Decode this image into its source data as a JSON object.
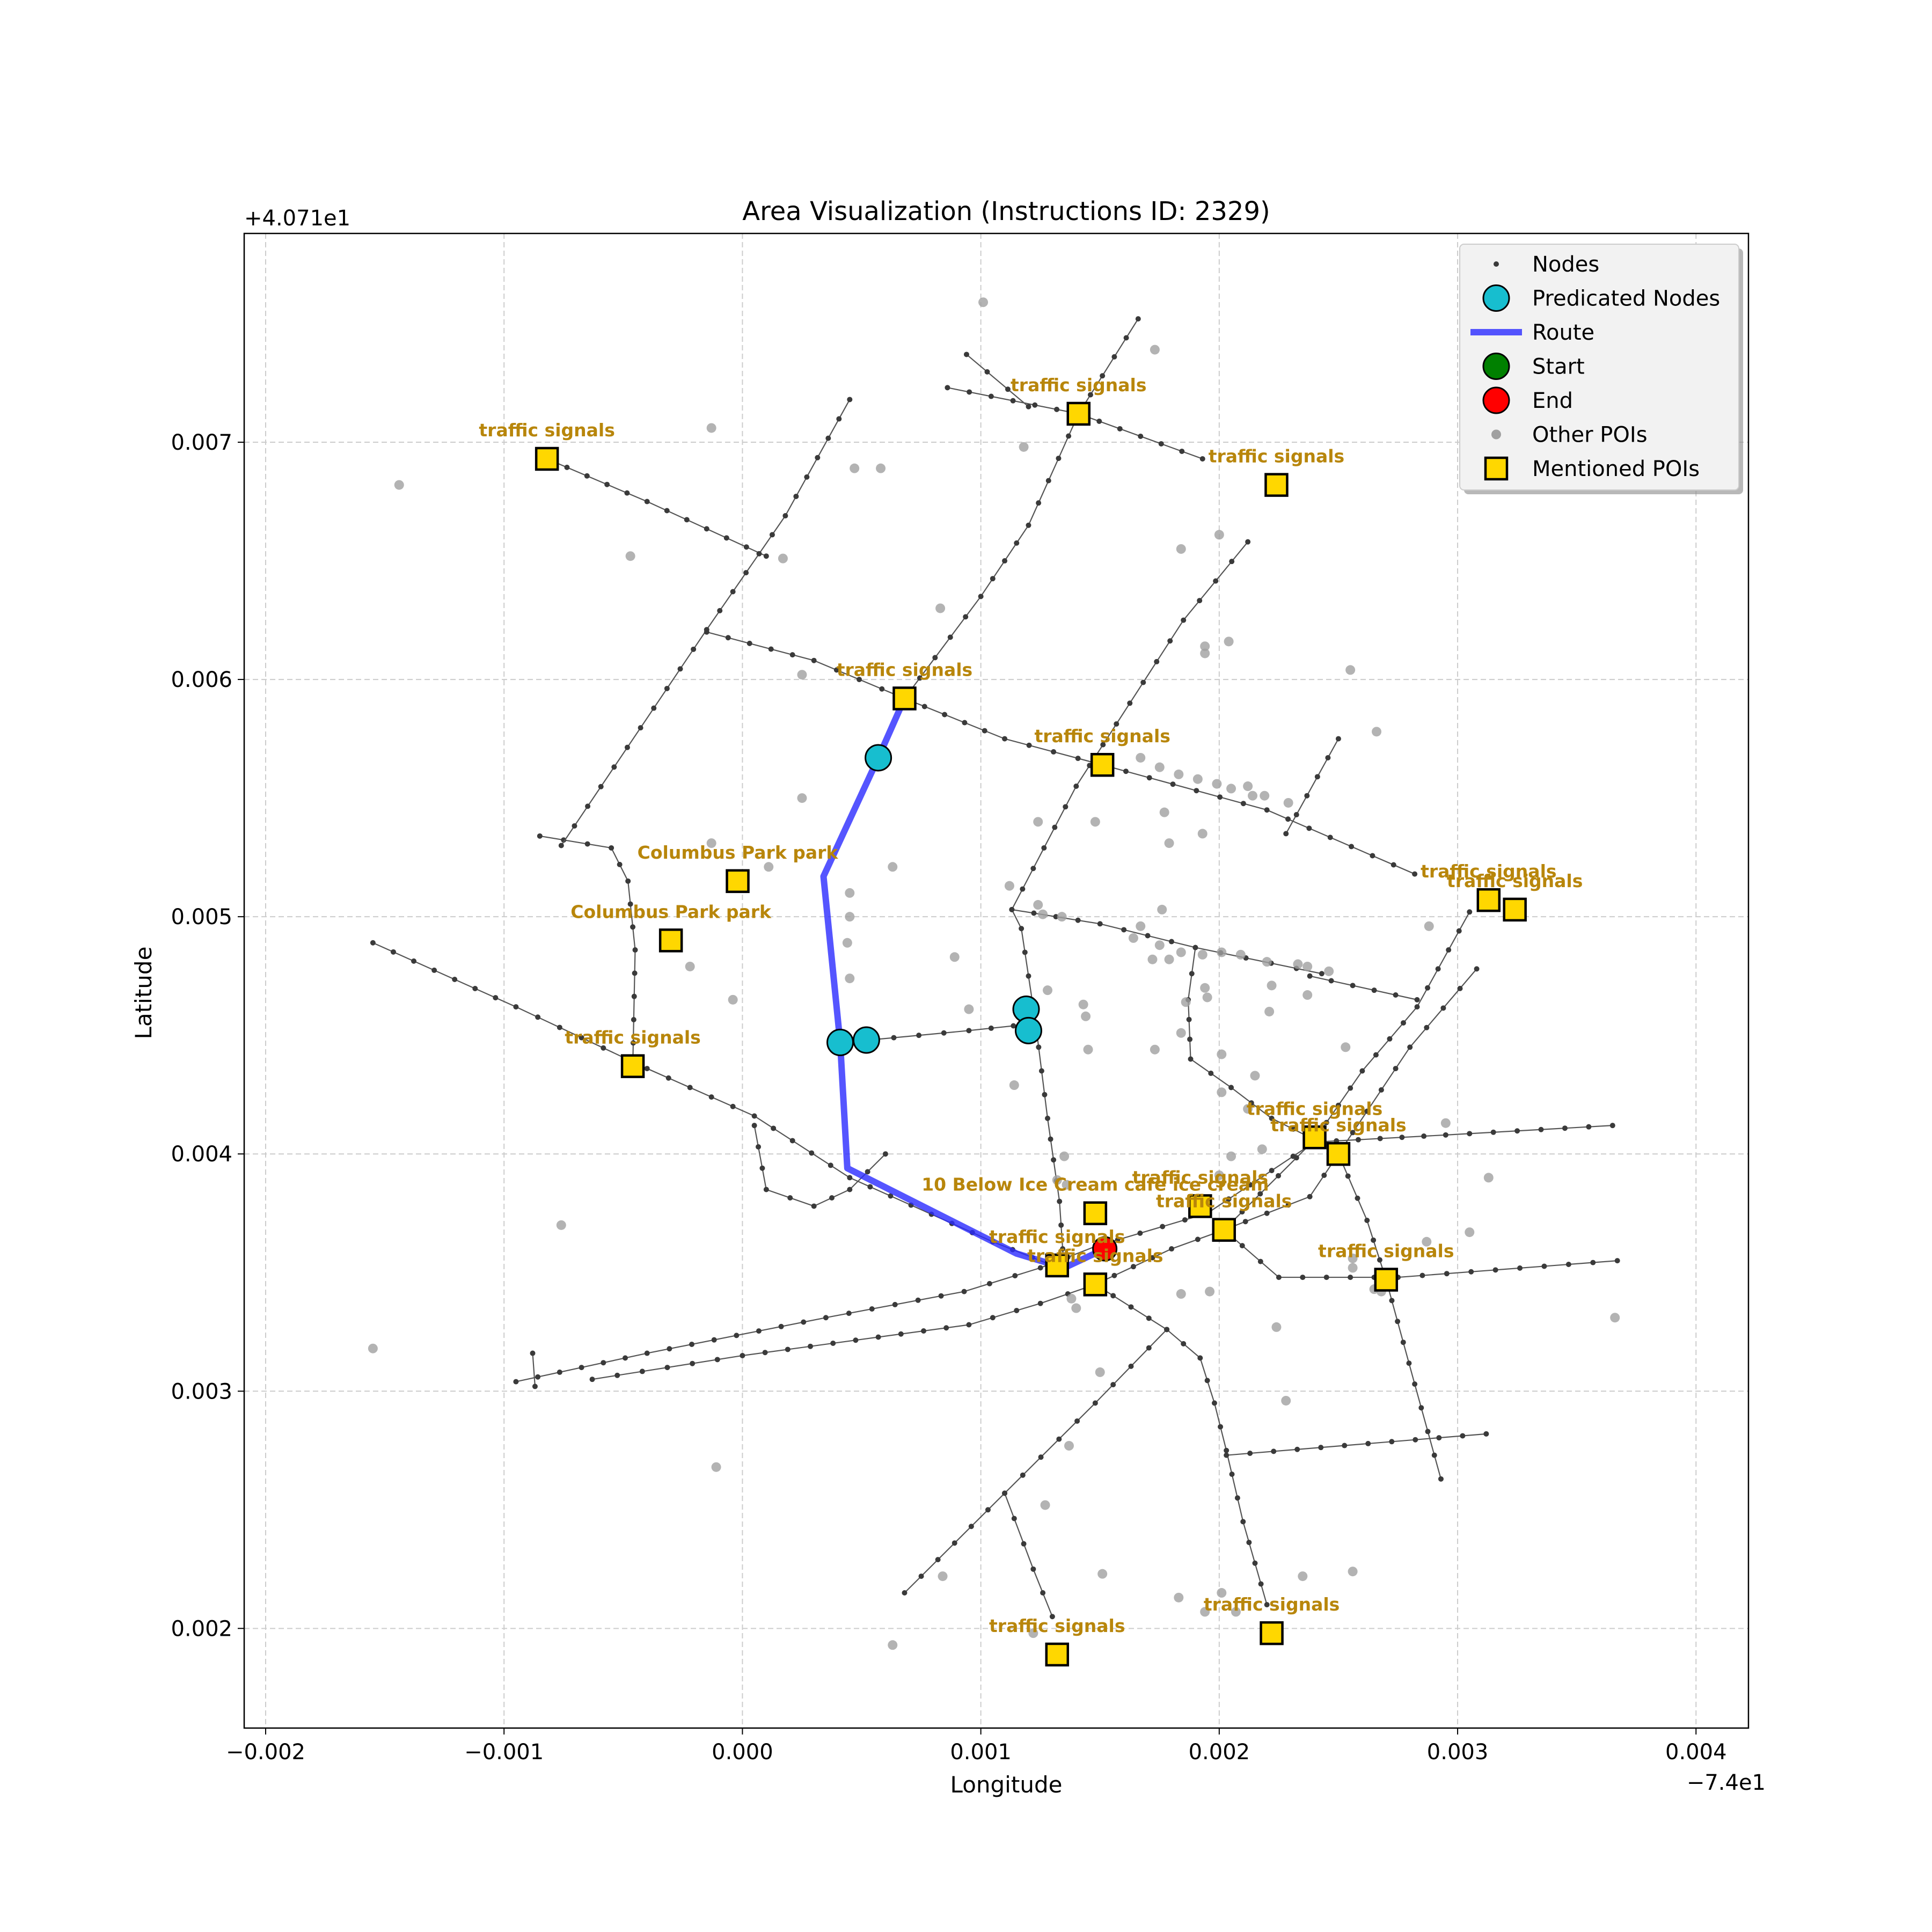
{
  "chart_data": {
    "type": "scatter",
    "title": "Area Visualization (Instructions ID: 2329)",
    "xlabel": "Longitude",
    "ylabel": "Latitude",
    "x_offset_label": "−7.4e1",
    "y_offset_label": "+4.071e1",
    "xlim": [
      -0.00209,
      0.00422
    ],
    "ylim": [
      0.00158,
      0.00788
    ],
    "x_ticks": [
      -0.002,
      -0.001,
      0.0,
      0.001,
      0.002,
      0.003,
      0.004
    ],
    "x_tick_labels": [
      "−0.002",
      "−0.001",
      "0.000",
      "0.001",
      "0.002",
      "0.003",
      "0.004"
    ],
    "y_ticks": [
      0.002,
      0.003,
      0.004,
      0.005,
      0.006,
      0.007
    ],
    "y_tick_labels": [
      "0.002",
      "0.003",
      "0.004",
      "0.005",
      "0.006",
      "0.007"
    ],
    "grid": true,
    "legend_position": "upper right",
    "legend": [
      {
        "label": "Nodes",
        "kind": "node"
      },
      {
        "label": "Predicated Nodes",
        "kind": "predicted"
      },
      {
        "label": "Route",
        "kind": "route"
      },
      {
        "label": "Start",
        "kind": "start"
      },
      {
        "label": "End",
        "kind": "end"
      },
      {
        "label": "Other POIs",
        "kind": "other"
      },
      {
        "label": "Mentioned POIs",
        "kind": "mentioned"
      }
    ],
    "colors": {
      "node": "#3a3a3a",
      "street": "#555555",
      "predicted": "#17becf",
      "route": "#2b2bff",
      "start": "#008000",
      "end": "#ff0000",
      "other_poi": "#a0a0a0",
      "mentioned_fill": "#ffd700",
      "label": "#b8860b"
    },
    "streets": [
      [
        [
          -0.00155,
          0.00489
        ],
        [
          -0.00095,
          0.00462
        ],
        [
          -0.0004,
          0.00436
        ],
        [
          5e-05,
          0.00416
        ],
        [
          0.00045,
          0.0039
        ],
        [
          0.00105,
          0.00363
        ],
        [
          0.0013,
          0.00353
        ]
      ],
      [
        [
          -0.00082,
          0.00693
        ],
        [
          -0.0004,
          0.00675
        ],
        [
          0.0001,
          0.00652
        ]
      ],
      [
        [
          -0.00085,
          0.00534
        ],
        [
          -0.00055,
          0.00529
        ],
        [
          -0.00048,
          0.00515
        ],
        [
          -0.00045,
          0.00486
        ],
        [
          -0.00046,
          0.00437
        ]
      ],
      [
        [
          -0.00076,
          0.0053
        ],
        [
          -0.00015,
          0.00621
        ],
        [
          0.00018,
          0.00669
        ],
        [
          0.00045,
          0.00718
        ]
      ],
      [
        [
          -0.00015,
          0.0062
        ],
        [
          0.0003,
          0.00608
        ],
        [
          0.00068,
          0.00592
        ],
        [
          0.0011,
          0.00575
        ],
        [
          0.00151,
          0.00564
        ],
        [
          0.0022,
          0.00545
        ],
        [
          0.00282,
          0.00518
        ]
      ],
      [
        [
          0.00068,
          0.00592
        ],
        [
          0.001,
          0.00635
        ],
        [
          0.0012,
          0.00665
        ],
        [
          0.00141,
          0.00712
        ],
        [
          0.00166,
          0.00752
        ]
      ],
      [
        [
          0.00086,
          0.00723
        ],
        [
          0.00141,
          0.00712
        ],
        [
          0.00193,
          0.00693
        ]
      ],
      [
        [
          0.00094,
          0.00737
        ],
        [
          0.0012,
          0.00715
        ]
      ],
      [
        [
          5e-05,
          0.00412
        ],
        [
          0.0001,
          0.00385
        ],
        [
          0.0003,
          0.00378
        ],
        [
          0.00045,
          0.00385
        ],
        [
          0.0006,
          0.004
        ]
      ],
      [
        [
          -0.00095,
          0.00304
        ],
        [
          -0.0004,
          0.00316
        ],
        [
          0.00035,
          0.00331
        ],
        [
          0.00093,
          0.00342
        ],
        [
          0.00125,
          0.00352
        ],
        [
          0.00148,
          0.00361
        ],
        [
          0.00195,
          0.00375
        ],
        [
          0.0024,
          0.00405
        ],
        [
          0.00295,
          0.00408
        ],
        [
          0.00365,
          0.00412
        ]
      ],
      [
        [
          -0.00063,
          0.00305
        ],
        [
          0.0,
          0.00315
        ],
        [
          0.00095,
          0.00328
        ],
        [
          0.00125,
          0.00337
        ],
        [
          0.00148,
          0.00345
        ],
        [
          0.0018,
          0.0036
        ],
        [
          0.00202,
          0.00368
        ],
        [
          0.00238,
          0.00382
        ],
        [
          0.0025,
          0.004
        ]
      ],
      [
        [
          -0.00088,
          0.00316
        ],
        [
          -0.00087,
          0.00302
        ]
      ],
      [
        [
          0.00202,
          0.00368
        ],
        [
          0.00225,
          0.00348
        ],
        [
          0.00275,
          0.00348
        ],
        [
          0.00367,
          0.00355
        ]
      ],
      [
        [
          0.0025,
          0.004
        ],
        [
          0.00262,
          0.00372
        ],
        [
          0.0027,
          0.00347
        ],
        [
          0.00282,
          0.00303
        ],
        [
          0.00293,
          0.00263
        ]
      ],
      [
        [
          0.00202,
          0.00368
        ],
        [
          0.0024,
          0.00406
        ],
        [
          0.0026,
          0.00435
        ],
        [
          0.00283,
          0.00462
        ],
        [
          0.00305,
          0.00502
        ]
      ],
      [
        [
          0.0025,
          0.004
        ],
        [
          0.0028,
          0.00445
        ],
        [
          0.00308,
          0.00478
        ]
      ],
      [
        [
          0.00148,
          0.00345
        ],
        [
          0.00178,
          0.00326
        ],
        [
          0.00192,
          0.00314
        ],
        [
          0.00198,
          0.00295
        ],
        [
          0.00203,
          0.00275
        ],
        [
          0.0021,
          0.00245
        ],
        [
          0.0022,
          0.0021
        ]
      ],
      [
        [
          0.00068,
          0.00215
        ],
        [
          0.0011,
          0.00257
        ],
        [
          0.00148,
          0.00295
        ],
        [
          0.00178,
          0.00326
        ]
      ],
      [
        [
          0.0011,
          0.00257
        ],
        [
          0.00122,
          0.00225
        ],
        [
          0.0013,
          0.00205
        ]
      ],
      [
        [
          0.00203,
          0.00273
        ],
        [
          0.00312,
          0.00282
        ]
      ],
      [
        [
          0.00053,
          0.00448
        ],
        [
          0.00095,
          0.00452
        ],
        [
          0.00123,
          0.00455
        ],
        [
          0.00128,
          0.00415
        ],
        [
          0.00133,
          0.0038
        ],
        [
          0.00135,
          0.0035
        ]
      ],
      [
        [
          0.00123,
          0.00455
        ],
        [
          0.00117,
          0.00495
        ],
        [
          0.00113,
          0.00503
        ],
        [
          0.0014,
          0.00555
        ],
        [
          0.00185,
          0.00625
        ],
        [
          0.00212,
          0.00658
        ]
      ],
      [
        [
          0.00113,
          0.00503
        ],
        [
          0.0015,
          0.00497
        ],
        [
          0.0019,
          0.00487
        ],
        [
          0.00243,
          0.00476
        ]
      ],
      [
        [
          0.0019,
          0.00487
        ],
        [
          0.00187,
          0.00465
        ],
        [
          0.00188,
          0.0044
        ],
        [
          0.00205,
          0.00428
        ],
        [
          0.00222,
          0.00415
        ],
        [
          0.0024,
          0.00406
        ]
      ],
      [
        [
          0.00238,
          0.00475
        ],
        [
          0.00283,
          0.00465
        ]
      ],
      [
        [
          0.00228,
          0.00535
        ],
        [
          0.0025,
          0.00575
        ]
      ]
    ],
    "route": [
      [
        0.00068,
        0.00592
      ],
      [
        0.00057,
        0.00567
      ],
      [
        0.00034,
        0.00517
      ],
      [
        0.00041,
        0.00447
      ],
      [
        0.00044,
        0.00394
      ],
      [
        0.00115,
        0.00358
      ],
      [
        0.00135,
        0.00352
      ],
      [
        0.00152,
        0.0036
      ]
    ],
    "predicted_nodes": [
      [
        0.00057,
        0.00567
      ],
      [
        0.00041,
        0.00447
      ],
      [
        0.00052,
        0.00448
      ],
      [
        0.00119,
        0.00461
      ],
      [
        0.0012,
        0.00452
      ]
    ],
    "start": [],
    "end": [
      [
        0.00152,
        0.0036
      ]
    ],
    "other_pois": [
      [
        -0.00144,
        0.00682
      ],
      [
        -0.00013,
        0.00706
      ],
      [
        0.00047,
        0.00689
      ],
      [
        0.00058,
        0.00689
      ],
      [
        -0.00047,
        0.00652
      ],
      [
        0.00017,
        0.00651
      ],
      [
        0.00025,
        0.00602
      ],
      [
        0.00083,
        0.0063
      ],
      [
        0.00101,
        0.00759
      ],
      [
        0.00118,
        0.00698
      ],
      [
        0.00173,
        0.00739
      ],
      [
        0.00184,
        0.00655
      ],
      [
        0.002,
        0.00661
      ],
      [
        0.00194,
        0.00614
      ],
      [
        0.00194,
        0.00611
      ],
      [
        0.00204,
        0.00616
      ],
      [
        0.00255,
        0.00604
      ],
      [
        0.00266,
        0.00578
      ],
      [
        0.00167,
        0.00567
      ],
      [
        0.00175,
        0.00563
      ],
      [
        0.00183,
        0.0056
      ],
      [
        0.00191,
        0.00558
      ],
      [
        0.00199,
        0.00556
      ],
      [
        0.00205,
        0.00554
      ],
      [
        0.00212,
        0.00555
      ],
      [
        0.00214,
        0.00551
      ],
      [
        0.00219,
        0.00551
      ],
      [
        0.00229,
        0.00548
      ],
      [
        0.00124,
        0.0054
      ],
      [
        0.00148,
        0.0054
      ],
      [
        0.00177,
        0.00544
      ],
      [
        0.00193,
        0.00535
      ],
      [
        0.00179,
        0.00531
      ],
      [
        0.00025,
        0.0055
      ],
      [
        -0.00013,
        0.00531
      ],
      [
        0.00011,
        0.00521
      ],
      [
        0.00063,
        0.00521
      ],
      [
        0.00112,
        0.00513
      ],
      [
        0.00045,
        0.0051
      ],
      [
        0.00045,
        0.005
      ],
      [
        0.00124,
        0.00505
      ],
      [
        0.00126,
        0.00501
      ],
      [
        0.00134,
        0.005
      ],
      [
        0.00167,
        0.00496
      ],
      [
        0.00176,
        0.00503
      ],
      [
        0.00164,
        0.00491
      ],
      [
        0.00175,
        0.00488
      ],
      [
        0.00184,
        0.00485
      ],
      [
        0.00193,
        0.00484
      ],
      [
        0.00201,
        0.00485
      ],
      [
        0.00209,
        0.00484
      ],
      [
        0.0022,
        0.00481
      ],
      [
        0.00222,
        0.00471
      ],
      [
        0.00233,
        0.0048
      ],
      [
        0.00237,
        0.00479
      ],
      [
        0.00246,
        0.00477
      ],
      [
        0.00288,
        0.00496
      ],
      [
        0.00044,
        0.00489
      ],
      [
        0.00045,
        0.00474
      ],
      [
        0.00089,
        0.00483
      ],
      [
        0.00172,
        0.00482
      ],
      [
        0.00179,
        0.00482
      ],
      [
        -0.00022,
        0.00479
      ],
      [
        -4e-05,
        0.00465
      ],
      [
        0.00095,
        0.00461
      ],
      [
        0.00128,
        0.00469
      ],
      [
        0.00143,
        0.00463
      ],
      [
        0.00144,
        0.00458
      ],
      [
        0.00186,
        0.00464
      ],
      [
        0.00194,
        0.0047
      ],
      [
        0.00195,
        0.00466
      ],
      [
        0.00221,
        0.0046
      ],
      [
        0.00237,
        0.00467
      ],
      [
        0.00184,
        0.00451
      ],
      [
        0.00145,
        0.00444
      ],
      [
        0.00173,
        0.00444
      ],
      [
        0.00201,
        0.00442
      ],
      [
        0.00215,
        0.00433
      ],
      [
        0.00253,
        0.00445
      ],
      [
        0.00114,
        0.00429
      ],
      [
        0.00201,
        0.00426
      ],
      [
        0.00295,
        0.00413
      ],
      [
        0.00212,
        0.00419
      ],
      [
        0.00205,
        0.00399
      ],
      [
        0.00218,
        0.00402
      ],
      [
        0.00135,
        0.00399
      ],
      [
        0.00132,
        0.00389
      ],
      [
        0.00136,
        0.00387
      ],
      [
        0.002,
        0.00391
      ],
      [
        0.00313,
        0.0039
      ],
      [
        -0.00076,
        0.0037
      ],
      [
        0.00287,
        0.00363
      ],
      [
        0.00305,
        0.00367
      ],
      [
        0.00256,
        0.00356
      ],
      [
        0.00265,
        0.00343
      ],
      [
        0.00268,
        0.00342
      ],
      [
        0.00256,
        0.00352
      ],
      [
        0.00184,
        0.00341
      ],
      [
        0.00196,
        0.00342
      ],
      [
        0.00138,
        0.00339
      ],
      [
        0.0014,
        0.00335
      ],
      [
        0.00224,
        0.00327
      ],
      [
        0.00366,
        0.00331
      ],
      [
        -0.00155,
        0.00318
      ],
      [
        0.0015,
        0.00308
      ],
      [
        0.00228,
        0.00296
      ],
      [
        0.00137,
        0.00277
      ],
      [
        -0.00011,
        0.00268
      ],
      [
        0.00127,
        0.00252
      ],
      [
        0.00084,
        0.00222
      ],
      [
        0.00151,
        0.00223
      ],
      [
        0.00183,
        0.00213
      ],
      [
        0.00201,
        0.00215
      ],
      [
        0.00235,
        0.00222
      ],
      [
        0.00256,
        0.00224
      ],
      [
        0.00194,
        0.00207
      ],
      [
        0.00207,
        0.00207
      ],
      [
        0.00063,
        0.00193
      ],
      [
        0.00122,
        0.00198
      ]
    ],
    "mentioned_pois": [
      {
        "x": -0.00082,
        "y": 0.00693,
        "label": "traffic signals"
      },
      {
        "x": 0.00141,
        "y": 0.00712,
        "label": "traffic signals"
      },
      {
        "x": 0.00224,
        "y": 0.00682,
        "label": "traffic signals"
      },
      {
        "x": 0.00068,
        "y": 0.00592,
        "label": "traffic signals"
      },
      {
        "x": 0.00151,
        "y": 0.00564,
        "label": "traffic signals"
      },
      {
        "x": -2e-05,
        "y": 0.00515,
        "label": "Columbus Park   park"
      },
      {
        "x": -0.0003,
        "y": 0.0049,
        "label": "Columbus Park   park"
      },
      {
        "x": -0.00046,
        "y": 0.00437,
        "label": "traffic signals"
      },
      {
        "x": 0.00313,
        "y": 0.00507,
        "label": "traffic signals"
      },
      {
        "x": 0.00324,
        "y": 0.00503,
        "label": "traffic signals"
      },
      {
        "x": 0.0024,
        "y": 0.00407,
        "label": "traffic signals"
      },
      {
        "x": 0.0025,
        "y": 0.004,
        "label": "traffic signals"
      },
      {
        "x": 0.00148,
        "y": 0.00375,
        "label": "10 Below Ice Cream cafe ice cream"
      },
      {
        "x": 0.00192,
        "y": 0.00378,
        "label": "traffic signals"
      },
      {
        "x": 0.00202,
        "y": 0.00368,
        "label": "traffic signals"
      },
      {
        "x": 0.00132,
        "y": 0.00353,
        "label": "traffic signals"
      },
      {
        "x": 0.00148,
        "y": 0.00345,
        "label": "traffic signals"
      },
      {
        "x": 0.0027,
        "y": 0.00347,
        "label": "traffic signals"
      },
      {
        "x": 0.00132,
        "y": 0.00189,
        "label": "traffic signals"
      },
      {
        "x": 0.00222,
        "y": 0.00198,
        "label": "traffic signals"
      }
    ]
  }
}
